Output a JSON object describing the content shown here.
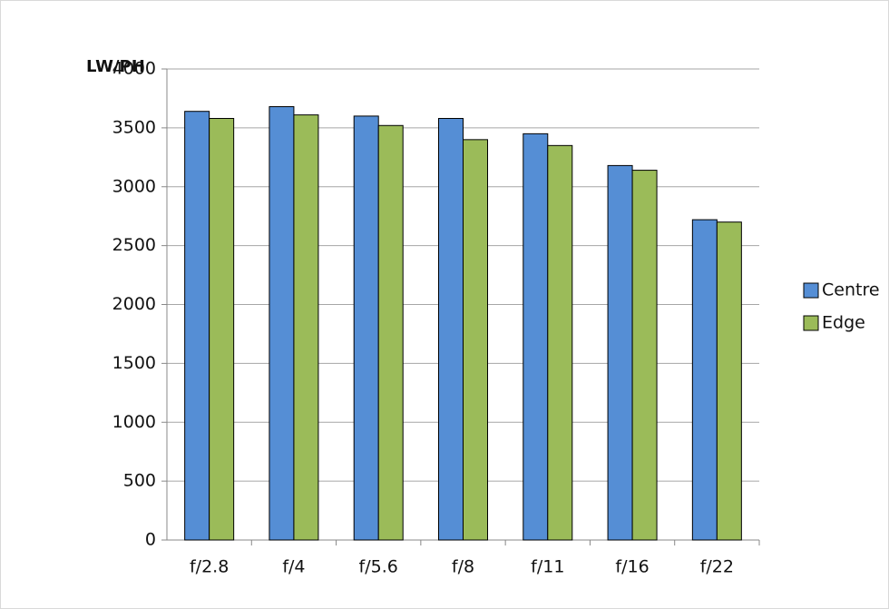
{
  "chart_data": {
    "type": "bar",
    "y_label": "LW/PH",
    "categories": [
      "f/2.8",
      "f/4",
      "f/5.6",
      "f/8",
      "f/11",
      "f/16",
      "f/22"
    ],
    "series": [
      {
        "name": "Centre",
        "color": "#558ed5",
        "values": [
          3640,
          3680,
          3600,
          3580,
          3450,
          3180,
          2720
        ]
      },
      {
        "name": "Edge",
        "color": "#9bbb59",
        "values": [
          3580,
          3610,
          3520,
          3400,
          3350,
          3140,
          2700
        ]
      }
    ],
    "ylim": [
      0,
      4000
    ],
    "yticks": [
      0,
      500,
      1000,
      1500,
      2000,
      2500,
      3000,
      3500,
      4000
    ],
    "grid": true,
    "legend": "right"
  }
}
